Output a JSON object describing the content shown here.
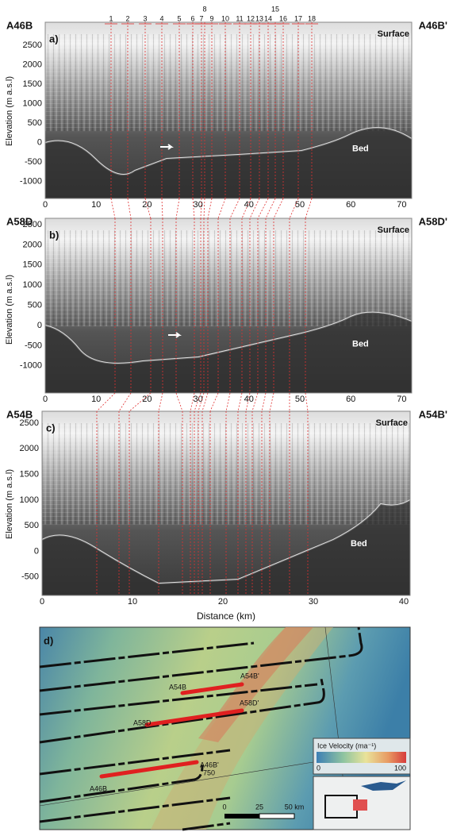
{
  "layer_numbers": [
    "1",
    "2",
    "3",
    "4",
    "5",
    "6",
    "7",
    "8",
    "9",
    "10",
    "11",
    "12",
    "13",
    "14",
    "15",
    "16",
    "17",
    "18"
  ],
  "y_axis_label": "Elevation (m a.s.l)",
  "x_axis_label": "Distance  (km)",
  "panels": [
    {
      "label": "a)",
      "start": "A46B",
      "end": "A46B'",
      "surface": "Surface",
      "bed": "Bed",
      "yticks": [
        "2500",
        "2000",
        "1500",
        "1000",
        "500",
        "0",
        "-500",
        "-1000"
      ],
      "xticks": [
        "0",
        "10",
        "20",
        "30",
        "40",
        "50",
        "60",
        "70"
      ]
    },
    {
      "label": "b)",
      "start": "A58D",
      "end": "A58D'",
      "surface": "Surface",
      "bed": "Bed",
      "yticks": [
        "2500",
        "2000",
        "1500",
        "1000",
        "500",
        "0",
        "-500",
        "-1000"
      ],
      "xticks": [
        "0",
        "10",
        "20",
        "30",
        "40",
        "50",
        "60",
        "70"
      ]
    },
    {
      "label": "c)",
      "start": "A54B",
      "end": "A54B'",
      "surface": "Surface",
      "bed": "Bed",
      "yticks": [
        "2500",
        "2000",
        "1500",
        "1000",
        "500",
        "0",
        "-500"
      ],
      "xticks": [
        "0",
        "10",
        "20",
        "30",
        "40"
      ]
    }
  ],
  "map": {
    "label": "d)",
    "lines": {
      "a54b": "A54B",
      "a54b_end": "A54B'",
      "a58d": "A58D",
      "a58d_end": "A58D'",
      "a46b": "A46B",
      "a46b_end": "A46B'"
    },
    "contour": "750",
    "legend": {
      "title": "Ice Velocity (ma⁻¹)",
      "min": "0",
      "max": "100"
    },
    "scale": [
      "0",
      "25",
      "50 km"
    ]
  }
}
